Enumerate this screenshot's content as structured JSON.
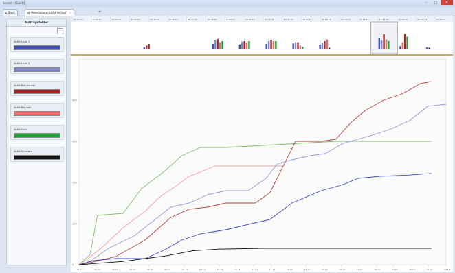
{
  "window": {
    "title": "Sesam – [Gantt]",
    "btn_minimize": "–",
    "btn_maximize": "□",
    "btn_close": "✕"
  },
  "tabs": [
    {
      "label": "Start",
      "icon": "home-icon"
    },
    {
      "label": "Messdatenansicht Verlauf",
      "icon": "chart-icon"
    }
  ],
  "sidebar": {
    "title": "Auftragsfelder",
    "items": [
      {
        "label": "Serie Linie 1",
        "color": "#3f4fb8"
      },
      {
        "label": "Serie Linie 2",
        "color": "#7f86c6"
      },
      {
        "label": "Serie Rot dunkel",
        "color": "#a62626"
      },
      {
        "label": "Serie Rot hell",
        "color": "#ef6b6b"
      },
      {
        "label": "Serie Grün",
        "color": "#22a03c"
      },
      {
        "label": "Serie Schwarz",
        "color": "#111111"
      }
    ]
  },
  "overview": {
    "ticks": [
      "Do 01.12.",
      "Fr 02.12.",
      "Sa 03.12.",
      "So 04.12.",
      "Mo 05.12.",
      "Di 06.12.",
      "Mi 07.12.",
      "Do 08.12.",
      "Fr 09.12.",
      "Sa 10.12.",
      "So 11.12.",
      "Mo 12.12.",
      "Di 13.12.",
      "Mi 14.12.",
      "Do 15.12.",
      "Fr 16.12.",
      "Sa 17.12.",
      "So 18.12.",
      "Mo 19.12.",
      "Di 20.12."
    ],
    "groups": [
      {
        "x": 0.19,
        "bars": [
          {
            "v": 0.08,
            "c": "#3f4fb8"
          },
          {
            "v": 0.14,
            "c": "#a62626"
          },
          {
            "v": 0.2,
            "c": "#a62626"
          }
        ]
      },
      {
        "x": 0.37,
        "bars": [
          {
            "v": 0.2,
            "c": "#3f4fb8"
          },
          {
            "v": 0.34,
            "c": "#7f86c6"
          },
          {
            "v": 0.38,
            "c": "#a62626"
          },
          {
            "v": 0.26,
            "c": "#ef6b6b"
          },
          {
            "v": 0.3,
            "c": "#22a03c"
          }
        ]
      },
      {
        "x": 0.44,
        "bars": [
          {
            "v": 0.18,
            "c": "#3f4fb8"
          },
          {
            "v": 0.28,
            "c": "#7f86c6"
          },
          {
            "v": 0.3,
            "c": "#a62626"
          },
          {
            "v": 0.24,
            "c": "#ef6b6b"
          },
          {
            "v": 0.3,
            "c": "#22a03c"
          }
        ]
      },
      {
        "x": 0.51,
        "bars": [
          {
            "v": 0.2,
            "c": "#3f4fb8"
          },
          {
            "v": 0.3,
            "c": "#7f86c6"
          },
          {
            "v": 0.34,
            "c": "#a62626"
          },
          {
            "v": 0.3,
            "c": "#ef6b6b"
          },
          {
            "v": 0.3,
            "c": "#22a03c"
          }
        ]
      },
      {
        "x": 0.58,
        "bars": [
          {
            "v": 0.22,
            "c": "#3f4fb8"
          },
          {
            "v": 0.26,
            "c": "#7f86c6"
          },
          {
            "v": 0.26,
            "c": "#a62626"
          },
          {
            "v": 0.14,
            "c": "#ef6b6b"
          },
          {
            "v": 0.1,
            "c": "#22a03c"
          }
        ]
      },
      {
        "x": 0.65,
        "bars": [
          {
            "v": 0.18,
            "c": "#3f4fb8"
          },
          {
            "v": 0.24,
            "c": "#7f86c6"
          },
          {
            "v": 0.3,
            "c": "#a62626"
          },
          {
            "v": 0.36,
            "c": "#ef6b6b"
          },
          {
            "v": 0.06,
            "c": "#111111"
          }
        ]
      },
      {
        "x": 0.805,
        "bars": [
          {
            "v": 0.4,
            "c": "#3f4fb8"
          },
          {
            "v": 0.32,
            "c": "#7f86c6"
          },
          {
            "v": 0.55,
            "c": "#a62626"
          },
          {
            "v": 0.36,
            "c": "#ef6b6b"
          },
          {
            "v": 0.3,
            "c": "#22a03c"
          }
        ]
      },
      {
        "x": 0.86,
        "bars": [
          {
            "v": 0.12,
            "c": "#3f4fb8"
          },
          {
            "v": 0.26,
            "c": "#ef6b6b"
          },
          {
            "v": 0.56,
            "c": "#a62626"
          },
          {
            "v": 0.46,
            "c": "#22a03c"
          }
        ]
      },
      {
        "x": 0.93,
        "bars": [
          {
            "v": 0.08,
            "c": "#3f4fb8"
          },
          {
            "v": 0.06,
            "c": "#111111"
          }
        ]
      }
    ],
    "selection": {
      "start": 0.785,
      "end": 0.855
    }
  },
  "main_chart": {
    "y_ticks": [
      "400",
      "300",
      "200",
      "100",
      "0"
    ],
    "x_ticks": [
      "01.12.",
      "02.12.",
      "03.12.",
      "04.12.",
      "05.12.",
      "06.12.",
      "07.12.",
      "08.12.",
      "09.12.",
      "10.12.",
      "11.12.",
      "12.12.",
      "13.12.",
      "14.12.",
      "15.12.",
      "16.12.",
      "17.12.",
      "18.12.",
      "19.12.",
      "20.12.",
      "21.12.",
      "22.12."
    ]
  },
  "chart_data": {
    "type": "line",
    "x_range": [
      0,
      100
    ],
    "ylim": [
      0,
      500
    ],
    "y_ticks": [
      0,
      100,
      200,
      300,
      400
    ],
    "grid": true,
    "series": [
      {
        "color": "#7dbb6a",
        "points": [
          [
            0,
            0
          ],
          [
            1,
            8
          ],
          [
            3,
            25
          ],
          [
            5,
            120
          ],
          [
            12,
            125
          ],
          [
            17,
            185
          ],
          [
            23,
            225
          ],
          [
            28,
            265
          ],
          [
            33,
            285
          ],
          [
            40,
            285
          ],
          [
            50,
            290
          ],
          [
            60,
            295
          ],
          [
            70,
            300
          ],
          [
            80,
            300
          ],
          [
            90,
            300
          ],
          [
            96,
            300
          ]
        ]
      },
      {
        "color": "#b1453a",
        "points": [
          [
            0,
            0
          ],
          [
            3,
            5
          ],
          [
            10,
            20
          ],
          [
            18,
            60
          ],
          [
            25,
            115
          ],
          [
            30,
            135
          ],
          [
            35,
            140
          ],
          [
            40,
            150
          ],
          [
            48,
            150
          ],
          [
            52,
            175
          ],
          [
            59,
            300
          ],
          [
            66,
            300
          ],
          [
            70,
            305
          ],
          [
            74,
            345
          ],
          [
            78,
            375
          ],
          [
            83,
            400
          ],
          [
            88,
            415
          ],
          [
            93,
            440
          ],
          [
            96,
            445
          ]
        ]
      },
      {
        "color": "#f3a1a1",
        "points": [
          [
            0,
            0
          ],
          [
            2,
            12
          ],
          [
            6,
            40
          ],
          [
            12,
            90
          ],
          [
            18,
            130
          ],
          [
            22,
            165
          ],
          [
            27,
            195
          ],
          [
            30,
            215
          ],
          [
            33,
            225
          ],
          [
            37,
            240
          ],
          [
            44,
            240
          ],
          [
            50,
            240
          ],
          [
            56,
            240
          ]
        ]
      },
      {
        "color": "#8f97d6",
        "points": [
          [
            0,
            0
          ],
          [
            3,
            8
          ],
          [
            8,
            40
          ],
          [
            15,
            70
          ],
          [
            20,
            105
          ],
          [
            25,
            140
          ],
          [
            30,
            150
          ],
          [
            35,
            170
          ],
          [
            40,
            180
          ],
          [
            46,
            180
          ],
          [
            51,
            210
          ],
          [
            54,
            245
          ],
          [
            58,
            255
          ],
          [
            63,
            265
          ],
          [
            67,
            270
          ],
          [
            72,
            295
          ],
          [
            76,
            305
          ],
          [
            80,
            315
          ],
          [
            85,
            330
          ],
          [
            90,
            350
          ],
          [
            95,
            385
          ],
          [
            100,
            390
          ]
        ]
      },
      {
        "color": "#3b49b5",
        "points": [
          [
            0,
            0
          ],
          [
            4,
            10
          ],
          [
            10,
            15
          ],
          [
            18,
            15
          ],
          [
            23,
            35
          ],
          [
            28,
            60
          ],
          [
            33,
            75
          ],
          [
            40,
            85
          ],
          [
            47,
            100
          ],
          [
            52,
            110
          ],
          [
            58,
            150
          ],
          [
            62,
            165
          ],
          [
            66,
            180
          ],
          [
            72,
            195
          ],
          [
            76,
            210
          ],
          [
            82,
            215
          ],
          [
            90,
            218
          ],
          [
            96,
            222
          ]
        ]
      },
      {
        "color": "#111111",
        "points": [
          [
            0,
            0
          ],
          [
            6,
            4
          ],
          [
            12,
            8
          ],
          [
            18,
            15
          ],
          [
            24,
            22
          ],
          [
            31,
            34
          ],
          [
            38,
            38
          ],
          [
            50,
            40
          ],
          [
            65,
            40
          ],
          [
            80,
            40
          ],
          [
            96,
            40
          ]
        ]
      }
    ]
  }
}
